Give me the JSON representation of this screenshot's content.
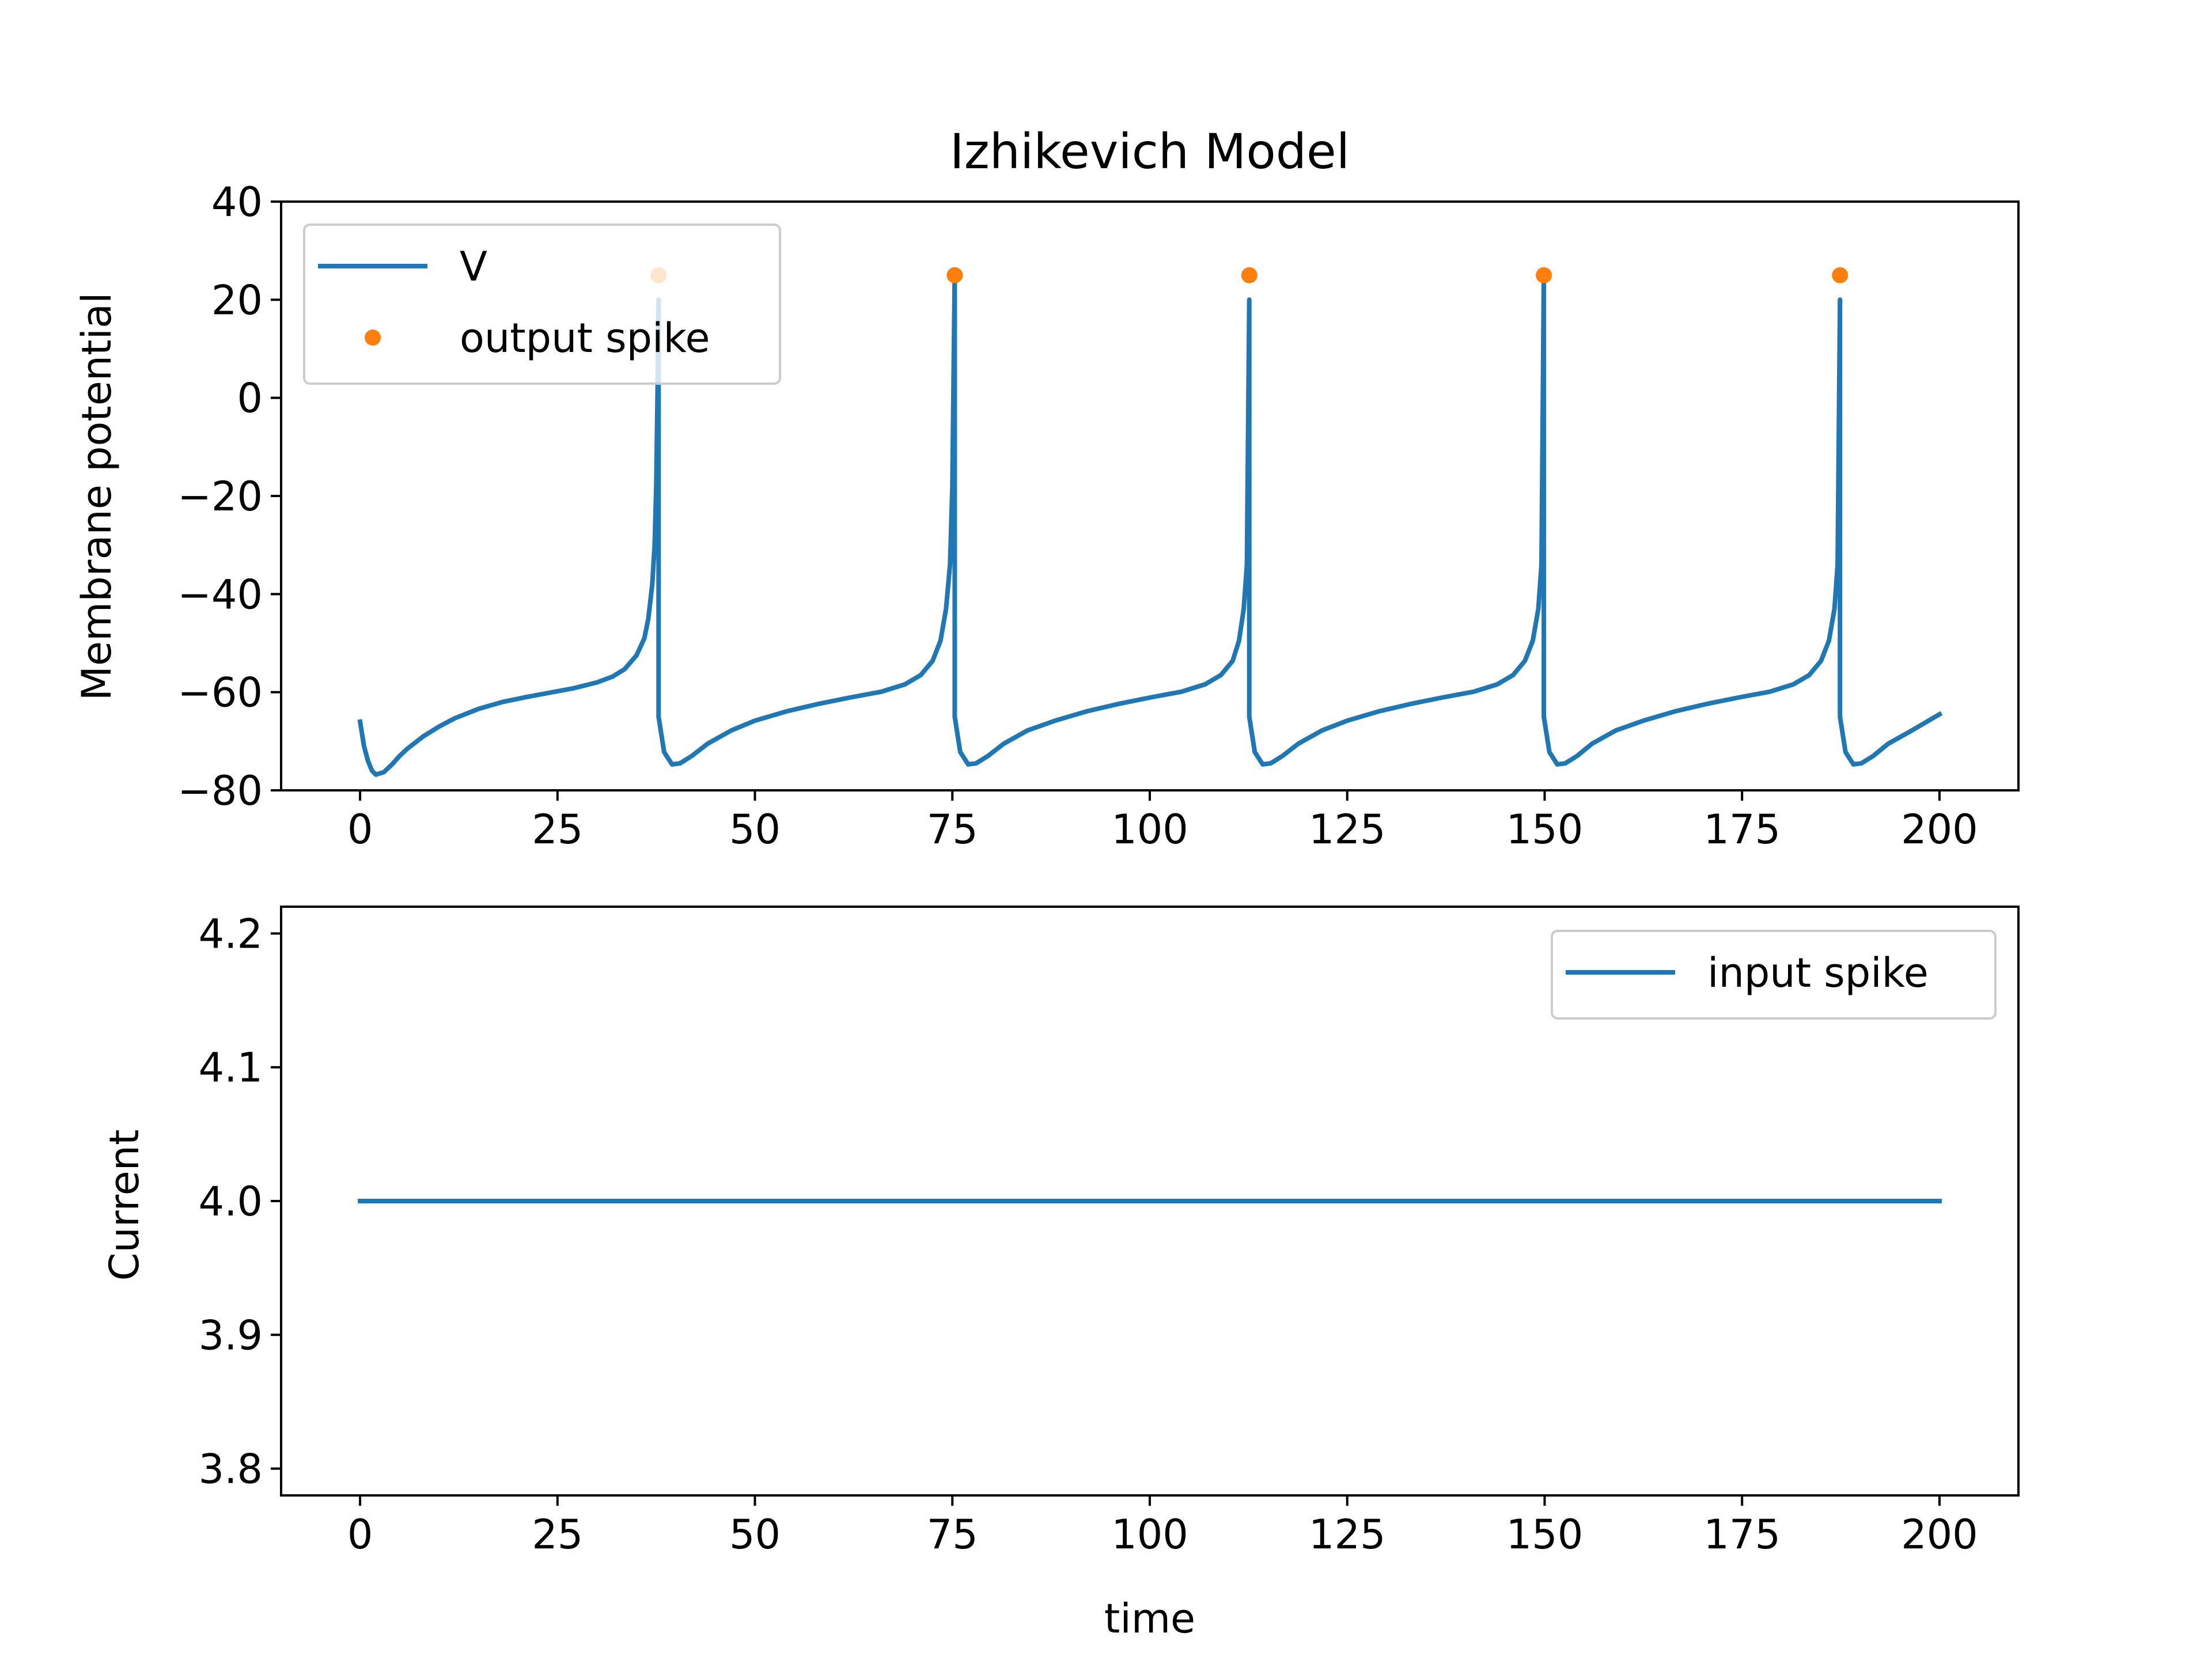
{
  "chart_data": [
    {
      "type": "line",
      "title": "Izhikevich Model",
      "xlabel": "",
      "ylabel": "Membrane potential",
      "xlim": [
        -10,
        210
      ],
      "ylim": [
        -80,
        40
      ],
      "xticks": [
        0,
        25,
        50,
        75,
        100,
        125,
        150,
        175,
        200
      ],
      "yticks": [
        -80,
        -60,
        -40,
        -20,
        0,
        20,
        40
      ],
      "ytick_labels": [
        "−80",
        "−60",
        "−40",
        "−20",
        "0",
        "20",
        "40"
      ],
      "legend_position": "upper-left",
      "series": [
        {
          "name": "V",
          "kind": "line",
          "color": "#1f77b4",
          "x": [
            0,
            0.5,
            1,
            1.5,
            2,
            3,
            4,
            5,
            6,
            8,
            10,
            12,
            15,
            18,
            21,
            24,
            27,
            30,
            32,
            33.5,
            35,
            36,
            36.5,
            37,
            37.3,
            37.5,
            37.7,
            37.8,
            37.8,
            38.5,
            39.5,
            40.5,
            42,
            44,
            47,
            50,
            54,
            58,
            62,
            66,
            69,
            71,
            72.5,
            73.5,
            74.2,
            74.7,
            75,
            75.3,
            75.3,
            76,
            77,
            78,
            79.5,
            81.5,
            84.5,
            88,
            92,
            96,
            100,
            104,
            107,
            109,
            110.5,
            111.3,
            111.9,
            112.3,
            112.6,
            112.6,
            113.3,
            114.3,
            115.3,
            116.8,
            118.8,
            121.8,
            125,
            129,
            133,
            137,
            141,
            144,
            146,
            147.5,
            148.5,
            149.2,
            149.6,
            149.9,
            149.9,
            150.6,
            151.6,
            152.6,
            154.1,
            156,
            159,
            162.5,
            166.5,
            170.5,
            174.5,
            178.5,
            181.5,
            183.5,
            185,
            186,
            186.7,
            187.1,
            187.4,
            187.4,
            188.1,
            189.1,
            190.1,
            191.6,
            193.5,
            196.5,
            200
          ],
          "y": [
            -66,
            -71,
            -74,
            -76,
            -76.8,
            -76.3,
            -74.8,
            -73,
            -71.5,
            -69,
            -67,
            -65.3,
            -63.4,
            -62,
            -61,
            -60.1,
            -59.2,
            -58,
            -56.8,
            -55.3,
            -52.5,
            -49,
            -45,
            -38,
            -30,
            -18,
            5,
            20,
            -65,
            -72.2,
            -74.7,
            -74.5,
            -73,
            -70.5,
            -67.8,
            -65.8,
            -63.9,
            -62.4,
            -61.1,
            -59.9,
            -58.4,
            -56.5,
            -53.6,
            -49.5,
            -43,
            -34,
            -18,
            26,
            -65,
            -72.2,
            -74.7,
            -74.5,
            -73,
            -70.5,
            -67.8,
            -65.8,
            -63.9,
            -62.4,
            -61.1,
            -59.9,
            -58.4,
            -56.5,
            -53.6,
            -49.5,
            -43,
            -34,
            20,
            -65,
            -72.2,
            -74.7,
            -74.5,
            -73,
            -70.5,
            -67.8,
            -65.8,
            -63.9,
            -62.4,
            -61.1,
            -59.9,
            -58.4,
            -56.5,
            -53.6,
            -49.5,
            -43,
            -34,
            26,
            -65,
            -72.2,
            -74.7,
            -74.5,
            -73,
            -70.5,
            -67.8,
            -65.8,
            -63.9,
            -62.4,
            -61.1,
            -59.9,
            -58.4,
            -56.5,
            -53.6,
            -49.5,
            -43,
            -34,
            20,
            -65,
            -72.2,
            -74.7,
            -74.5,
            -73,
            -70.5,
            -67.8,
            -64.5
          ]
        },
        {
          "name": "output spike",
          "kind": "scatter",
          "color": "#ff7f0e",
          "x": [
            37.8,
            75.3,
            112.6,
            149.9,
            187.4
          ],
          "y": [
            25,
            25,
            25,
            25,
            25
          ]
        }
      ]
    },
    {
      "type": "line",
      "title": "",
      "xlabel": "time",
      "ylabel": "Current",
      "xlim": [
        -10,
        210
      ],
      "ylim": [
        3.78,
        4.22
      ],
      "xticks": [
        0,
        25,
        50,
        75,
        100,
        125,
        150,
        175,
        200
      ],
      "yticks": [
        3.8,
        3.9,
        4.0,
        4.1,
        4.2
      ],
      "ytick_labels": [
        "3.8",
        "3.9",
        "4.0",
        "4.1",
        "4.2"
      ],
      "legend_position": "upper-right",
      "series": [
        {
          "name": "input spike",
          "kind": "line",
          "color": "#1f77b4",
          "x": [
            0,
            200
          ],
          "y": [
            4.0,
            4.0
          ]
        }
      ]
    }
  ]
}
